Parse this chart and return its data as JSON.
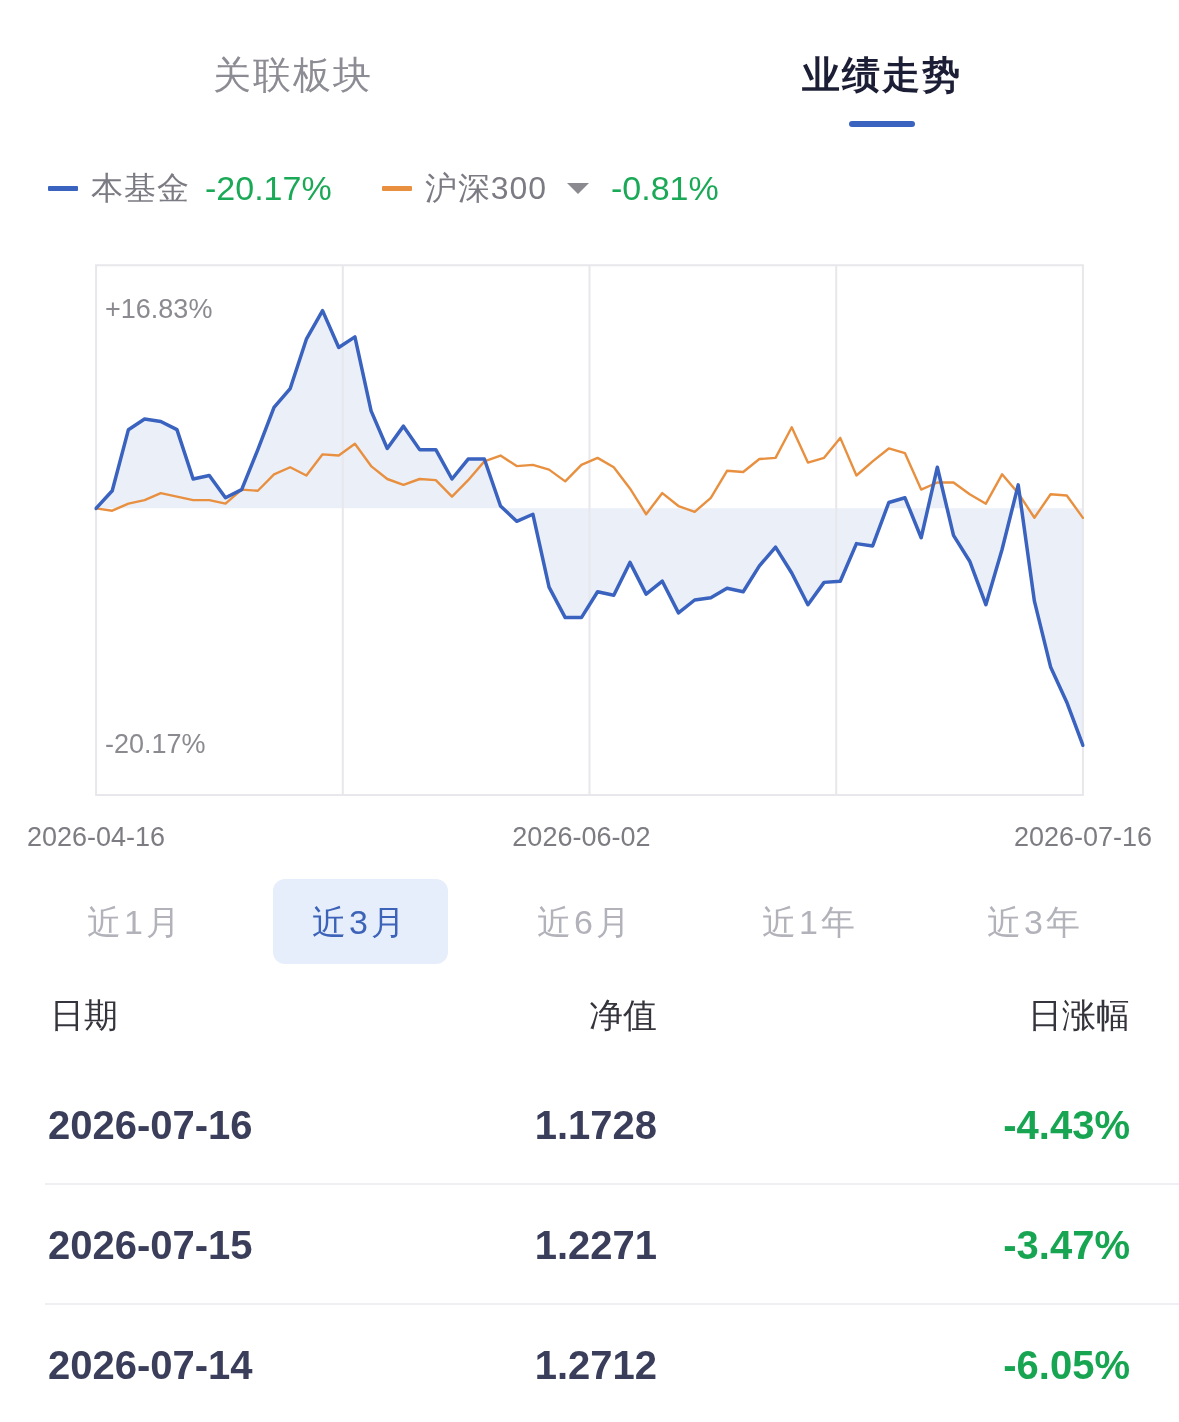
{
  "chart_data": [
    {
      "type": "line",
      "annotations": [
        "关联板块",
        "业绩走势",
        "-20.17%",
        "-0.81%",
        "近1月",
        "近3月",
        "近6月",
        "近1年",
        "近3年"
      ],
      "categories": [
        "2026-04-16",
        null,
        null,
        null,
        null,
        null,
        null,
        null,
        null,
        null,
        null,
        null,
        null,
        null,
        null,
        null,
        null,
        null,
        null,
        null,
        null,
        null,
        null,
        null,
        null,
        null,
        null,
        null,
        null,
        null,
        "2026-06-02",
        null,
        null,
        null,
        null,
        null,
        null,
        null,
        null,
        null,
        null,
        null,
        null,
        null,
        null,
        null,
        null,
        null,
        null,
        null,
        null,
        null,
        null,
        null,
        null,
        null,
        null,
        null,
        null,
        null,
        null,
        "2026-07-16"
      ],
      "series": [
        {
          "name": "本基金",
          "type": "area",
          "color": "#3a62bf",
          "values": [
            0,
            1.5,
            6.7,
            7.6,
            7.4,
            6.7,
            2.5,
            2.8,
            0.9,
            1.6,
            5.0,
            8.6,
            10.2,
            14.4,
            16.83,
            13.7,
            14.6,
            8.3,
            5.1,
            7.0,
            5.0,
            5.0,
            2.5,
            4.2,
            4.2,
            0.2,
            -1.1,
            -0.5,
            -6.7,
            -9.3,
            -9.3,
            -7.1,
            -7.4,
            -4.6,
            -7.3,
            -6.2,
            -8.9,
            -7.8,
            -7.6,
            -6.8,
            -7.1,
            -4.9,
            -3.3,
            -5.5,
            -8.2,
            -6.3,
            -6.2,
            -3.0,
            -3.2,
            0.5,
            0.9,
            -2.5,
            3.5,
            -2.3,
            -4.5,
            -8.2,
            -3.5,
            2.0,
            -7.9,
            -13.5,
            -16.5,
            -20.17
          ]
        },
        {
          "name": "沪深300",
          "color": "#e8903f",
          "values": [
            0,
            -0.2,
            0.4,
            0.7,
            1.3,
            1.0,
            0.7,
            0.7,
            0.4,
            1.6,
            1.5,
            2.9,
            3.5,
            2.8,
            4.6,
            4.5,
            5.5,
            3.6,
            2.5,
            2.0,
            2.5,
            2.4,
            1.0,
            2.4,
            4.0,
            4.5,
            3.6,
            3.7,
            3.3,
            2.3,
            3.7,
            4.3,
            3.5,
            1.7,
            -0.5,
            1.3,
            0.2,
            -0.3,
            0.9,
            3.2,
            3.1,
            4.2,
            4.3,
            6.9,
            3.9,
            4.3,
            6.0,
            2.8,
            4.0,
            5.1,
            4.7,
            1.6,
            2.2,
            2.2,
            1.2,
            0.4,
            2.9,
            1.3,
            -0.8,
            1.2,
            1.1,
            -0.81
          ]
        }
      ],
      "ylim": [
        -24.4,
        20.7
      ],
      "yticks": [
        {
          "value": -20.17,
          "label": "-20.17%"
        },
        {
          "value": 16.83,
          "label": "+16.83%"
        }
      ],
      "grid": "x",
      "legend": "top left"
    },
    {
      "type": "other",
      "annotations": [
        "日期",
        "净值",
        "日涨幅",
        "2026-07-16",
        "1.1728",
        "-4.43%",
        "2026-07-15",
        "1.2271",
        "-3.47%",
        "2026-07-14",
        "1.2712",
        "-6.05%"
      ]
    }
  ]
}
